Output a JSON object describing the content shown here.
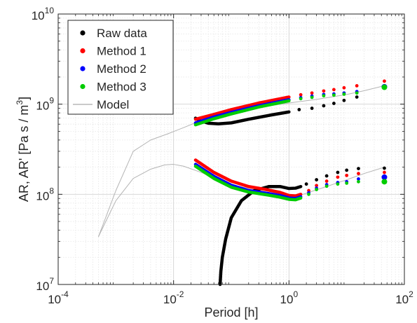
{
  "chart_data": {
    "type": "scatter",
    "xlabel": "Period [h]",
    "ylabel": "AR, AR'  [Pa s / m",
    "ylabel_sup": "3",
    "ylabel_close": "]",
    "xscale": "log",
    "yscale": "log",
    "xlim": [
      0.0001,
      100
    ],
    "ylim": [
      10000000,
      10000000000
    ],
    "grid": true,
    "minor_grid": true,
    "legend_position": "top-left",
    "x_ticks": [
      {
        "value": 0.0001,
        "base": "10",
        "exp": "-4"
      },
      {
        "value": 0.01,
        "base": "10",
        "exp": "-2"
      },
      {
        "value": 1,
        "base": "10",
        "exp": "0"
      },
      {
        "value": 100,
        "base": "10",
        "exp": "2"
      }
    ],
    "y_ticks": [
      {
        "value": 10000000,
        "base": "10",
        "exp": "7"
      },
      {
        "value": 100000000,
        "base": "10",
        "exp": "8"
      },
      {
        "value": 1000000000,
        "base": "10",
        "exp": "9"
      },
      {
        "value": 10000000000,
        "base": "10",
        "exp": "10"
      }
    ],
    "legend": [
      {
        "label": "Raw data",
        "kind": "marker",
        "color": "#000000"
      },
      {
        "label": "Method 1",
        "kind": "marker",
        "color": "#ff0000"
      },
      {
        "label": "Method 2",
        "kind": "marker",
        "color": "#0000ff"
      },
      {
        "label": "Method 3",
        "kind": "marker",
        "color": "#00cc00"
      },
      {
        "label": "Model",
        "kind": "line",
        "color": "#aaaaaa"
      }
    ],
    "series": [
      {
        "name": "Model",
        "kind": "line",
        "color": "#b4b4b4",
        "points": [
          [
            0.0005,
            34000000
          ],
          [
            0.001,
            110000000
          ],
          [
            0.002,
            300000000
          ],
          [
            0.004,
            400000000
          ],
          [
            0.008,
            470000000
          ],
          [
            0.015,
            550000000
          ],
          [
            0.03,
            660000000
          ],
          [
            0.06,
            760000000
          ],
          [
            0.1,
            820000000
          ],
          [
            0.3,
            920000000
          ],
          [
            1,
            1030000000
          ],
          [
            3,
            1130000000
          ],
          [
            10,
            1280000000
          ],
          [
            20,
            1410000000
          ],
          [
            45,
            1600000000
          ]
        ]
      },
      {
        "name": "Model",
        "kind": "line",
        "color": "#b4b4b4",
        "points": [
          [
            0.0005,
            34000000
          ],
          [
            0.001,
            85000000
          ],
          [
            0.002,
            150000000
          ],
          [
            0.004,
            190000000
          ],
          [
            0.007,
            212000000
          ],
          [
            0.01,
            215000000
          ],
          [
            0.015,
            205000000
          ],
          [
            0.03,
            175000000
          ],
          [
            0.06,
            145000000
          ],
          [
            0.1,
            128000000
          ],
          [
            0.3,
            110000000
          ],
          [
            0.6,
            101000000
          ],
          [
            1,
            96000000
          ],
          [
            1.5,
            97000000
          ],
          [
            3,
            112000000
          ],
          [
            10,
            145000000
          ],
          [
            20,
            170000000
          ],
          [
            45,
            200000000
          ]
        ]
      },
      {
        "name": "Raw data",
        "kind": "line",
        "color": "#000000",
        "points": [
          [
            0.024,
            700000000
          ],
          [
            0.03,
            650000000
          ],
          [
            0.04,
            615000000
          ],
          [
            0.06,
            605000000
          ],
          [
            0.1,
            620000000
          ],
          [
            0.2,
            680000000
          ],
          [
            0.5,
            760000000
          ],
          [
            1,
            820000000
          ]
        ]
      },
      {
        "name": "Raw data",
        "kind": "points",
        "color": "#000000",
        "points": [
          [
            1.5,
            870000000
          ],
          [
            2.5,
            900000000
          ],
          [
            4,
            960000000
          ],
          [
            6,
            1020000000
          ],
          [
            9,
            1100000000
          ],
          [
            15,
            1200000000
          ],
          [
            45,
            1550000000
          ]
        ]
      },
      {
        "name": "Raw data",
        "kind": "line",
        "color": "#000000",
        "points": [
          [
            0.064,
            10000000
          ],
          [
            0.066,
            14000000
          ],
          [
            0.07,
            20000000
          ],
          [
            0.08,
            32000000
          ],
          [
            0.1,
            55000000
          ],
          [
            0.15,
            85000000
          ],
          [
            0.25,
            110000000
          ],
          [
            0.45,
            122000000
          ],
          [
            0.7,
            122000000
          ],
          [
            1,
            116000000
          ],
          [
            1.3,
            117000000
          ],
          [
            1.6,
            122000000
          ]
        ]
      },
      {
        "name": "Raw data",
        "kind": "points",
        "color": "#000000",
        "points": [
          [
            2,
            130000000
          ],
          [
            3,
            145000000
          ],
          [
            4.5,
            160000000
          ],
          [
            7,
            175000000
          ],
          [
            10,
            185000000
          ],
          [
            16,
            193000000
          ],
          [
            45,
            195000000
          ]
        ]
      },
      {
        "name": "Method 1",
        "kind": "line",
        "color": "#ff0000",
        "points": [
          [
            0.024,
            680000000
          ],
          [
            0.05,
            770000000
          ],
          [
            0.1,
            870000000
          ],
          [
            0.3,
            1030000000
          ],
          [
            1,
            1200000000
          ]
        ]
      },
      {
        "name": "Method 1",
        "kind": "points",
        "color": "#ff0000",
        "points": [
          [
            1.6,
            1270000000
          ],
          [
            2.5,
            1330000000
          ],
          [
            4,
            1400000000
          ],
          [
            6,
            1450000000
          ],
          [
            9,
            1520000000
          ],
          [
            15,
            1600000000
          ],
          [
            45,
            1800000000
          ]
        ]
      },
      {
        "name": "Method 1",
        "kind": "line",
        "color": "#ff0000",
        "points": [
          [
            0.024,
            240000000
          ],
          [
            0.05,
            175000000
          ],
          [
            0.1,
            140000000
          ],
          [
            0.2,
            122000000
          ],
          [
            0.4,
            113000000
          ],
          [
            0.7,
            105000000
          ],
          [
            1,
            97000000
          ],
          [
            1.3,
            96000000
          ],
          [
            1.6,
            100000000
          ]
        ]
      },
      {
        "name": "Method 1",
        "kind": "points",
        "color": "#ff0000",
        "points": [
          [
            2.2,
            110000000
          ],
          [
            3,
            125000000
          ],
          [
            4.5,
            140000000
          ],
          [
            7,
            155000000
          ],
          [
            10,
            162000000
          ],
          [
            16,
            170000000
          ],
          [
            45,
            175000000
          ]
        ]
      },
      {
        "name": "Method 2",
        "kind": "line",
        "color": "#0000ff",
        "points": [
          [
            0.024,
            620000000
          ],
          [
            0.05,
            720000000
          ],
          [
            0.1,
            810000000
          ],
          [
            0.3,
            960000000
          ],
          [
            1,
            1120000000
          ]
        ]
      },
      {
        "name": "Method 2",
        "kind": "points",
        "color": "#0000ff",
        "points": [
          [
            1.6,
            1180000000
          ],
          [
            2.5,
            1230000000
          ],
          [
            4,
            1280000000
          ],
          [
            6,
            1300000000
          ],
          [
            9,
            1330000000
          ],
          [
            15,
            1380000000
          ],
          [
            45,
            1560000000
          ]
        ]
      },
      {
        "name": "Method 2",
        "kind": "line",
        "color": "#0000ff",
        "points": [
          [
            0.024,
            215000000
          ],
          [
            0.05,
            158000000
          ],
          [
            0.1,
            126000000
          ],
          [
            0.2,
            110000000
          ],
          [
            0.4,
            103000000
          ],
          [
            0.7,
            97000000
          ],
          [
            1,
            91000000
          ],
          [
            1.3,
            90000000
          ],
          [
            1.6,
            94000000
          ]
        ]
      },
      {
        "name": "Method 2",
        "kind": "points",
        "color": "#0000ff",
        "points": [
          [
            2.2,
            104000000
          ],
          [
            3,
            117000000
          ],
          [
            4.5,
            128000000
          ],
          [
            7,
            135000000
          ],
          [
            10,
            138000000
          ],
          [
            16,
            148000000
          ],
          [
            45,
            155000000
          ]
        ]
      },
      {
        "name": "Method 3",
        "kind": "line",
        "color": "#00cc00",
        "points": [
          [
            0.024,
            590000000
          ],
          [
            0.05,
            690000000
          ],
          [
            0.1,
            780000000
          ],
          [
            0.3,
            930000000
          ],
          [
            1,
            1090000000
          ]
        ]
      },
      {
        "name": "Method 3",
        "kind": "points",
        "color": "#00cc00",
        "points": [
          [
            1.6,
            1150000000
          ],
          [
            2.5,
            1190000000
          ],
          [
            4,
            1240000000
          ],
          [
            6,
            1260000000
          ],
          [
            9,
            1290000000
          ],
          [
            15,
            1330000000
          ],
          [
            45,
            1540000000
          ]
        ]
      },
      {
        "name": "Method 3",
        "kind": "line",
        "color": "#00cc00",
        "points": [
          [
            0.024,
            205000000
          ],
          [
            0.05,
            150000000
          ],
          [
            0.1,
            120000000
          ],
          [
            0.2,
            106000000
          ],
          [
            0.4,
            99000000
          ],
          [
            0.7,
            93000000
          ],
          [
            1,
            88000000
          ],
          [
            1.3,
            87000000
          ],
          [
            1.6,
            91000000
          ]
        ]
      },
      {
        "name": "Method 3",
        "kind": "points",
        "color": "#00cc00",
        "points": [
          [
            2.2,
            100000000
          ],
          [
            3,
            113000000
          ],
          [
            4.5,
            123000000
          ],
          [
            7,
            130000000
          ],
          [
            10,
            133000000
          ],
          [
            16,
            138000000
          ],
          [
            45,
            138000000
          ]
        ]
      }
    ]
  }
}
